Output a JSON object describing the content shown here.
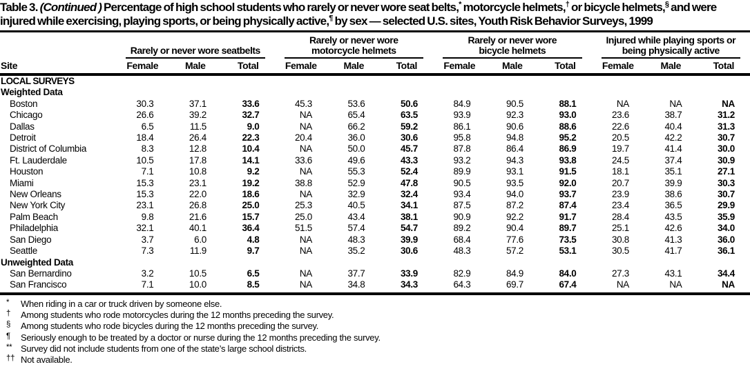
{
  "title": {
    "label": "Table 3.",
    "continued": "(Continued )",
    "part_students": "Percentage of high school students who rarely or never wore seat belts,",
    "marker_seatbelts": "*",
    "part_motorcycle": "motorcycle helmets,",
    "marker_motorcycle": "†",
    "part_bicycle": "or bicycle helmets,",
    "marker_bicycle": "§",
    "part_injured": "and were injured while exercising, playing sports, or being physically active,",
    "marker_injured": "¶",
    "part_end": "by sex — selected U.S. sites, Youth Risk Behavior Surveys, 1999"
  },
  "table": {
    "site_header": "Site",
    "groups": [
      {
        "label": "Rarely or never wore seatbelts"
      },
      {
        "label": "Rarely or never wore\nmotorcycle helmets"
      },
      {
        "label": "Rarely or never wore\nbicycle helmets"
      },
      {
        "label": "Injured while playing sports or\nbeing physically active"
      }
    ],
    "subheaders": [
      "Female",
      "Male",
      "Total"
    ],
    "rows": [
      {
        "section": "LOCAL SURVEYS",
        "caps": true
      },
      {
        "section": "Weighted Data"
      },
      {
        "site": "Boston",
        "values": [
          "30.3",
          "37.1",
          "33.6",
          "45.3",
          "53.6",
          "50.6",
          "84.9",
          "90.5",
          "88.1",
          "NA",
          "NA",
          "NA"
        ]
      },
      {
        "site": "Chicago",
        "values": [
          "26.6",
          "39.2",
          "32.7",
          "NA",
          "65.4",
          "63.5",
          "93.9",
          "92.3",
          "93.0",
          "23.6",
          "38.7",
          "31.2"
        ]
      },
      {
        "site": "Dallas",
        "values": [
          "6.5",
          "11.5",
          "9.0",
          "NA",
          "66.2",
          "59.2",
          "86.1",
          "90.6",
          "88.6",
          "22.6",
          "40.4",
          "31.3"
        ]
      },
      {
        "site": "Detroit",
        "values": [
          "18.4",
          "26.4",
          "22.3",
          "20.4",
          "36.0",
          "30.6",
          "95.8",
          "94.8",
          "95.2",
          "20.5",
          "42.2",
          "30.7"
        ]
      },
      {
        "site": "District of Columbia",
        "values": [
          "8.3",
          "12.8",
          "10.4",
          "NA",
          "50.0",
          "45.7",
          "87.8",
          "86.4",
          "86.9",
          "19.7",
          "41.4",
          "30.0"
        ]
      },
      {
        "site": "Ft. Lauderdale",
        "values": [
          "10.5",
          "17.8",
          "14.1",
          "33.6",
          "49.6",
          "43.3",
          "93.2",
          "94.3",
          "93.8",
          "24.5",
          "37.4",
          "30.9"
        ]
      },
      {
        "site": "Houston",
        "values": [
          "7.1",
          "10.8",
          "9.2",
          "NA",
          "55.3",
          "52.4",
          "89.9",
          "93.1",
          "91.5",
          "18.1",
          "35.1",
          "27.1"
        ]
      },
      {
        "site": "Miami",
        "values": [
          "15.3",
          "23.1",
          "19.2",
          "38.8",
          "52.9",
          "47.8",
          "90.5",
          "93.5",
          "92.0",
          "20.7",
          "39.9",
          "30.3"
        ]
      },
      {
        "site": "New Orleans",
        "values": [
          "15.3",
          "22.0",
          "18.6",
          "NA",
          "32.9",
          "32.4",
          "93.4",
          "94.0",
          "93.7",
          "23.9",
          "38.6",
          "30.7"
        ]
      },
      {
        "site": "New York City",
        "values": [
          "23.1",
          "26.8",
          "25.0",
          "25.3",
          "40.5",
          "34.1",
          "87.5",
          "87.2",
          "87.4",
          "23.4",
          "36.5",
          "29.9"
        ]
      },
      {
        "site": "Palm Beach",
        "values": [
          "9.8",
          "21.6",
          "15.7",
          "25.0",
          "43.4",
          "38.1",
          "90.9",
          "92.2",
          "91.7",
          "28.4",
          "43.5",
          "35.9"
        ]
      },
      {
        "site": "Philadelphia",
        "values": [
          "32.1",
          "40.1",
          "36.4",
          "51.5",
          "57.4",
          "54.7",
          "89.2",
          "90.4",
          "89.7",
          "25.1",
          "42.6",
          "34.0"
        ]
      },
      {
        "site": "San Diego",
        "values": [
          "3.7",
          "6.0",
          "4.8",
          "NA",
          "48.3",
          "39.9",
          "68.4",
          "77.6",
          "73.5",
          "30.8",
          "41.3",
          "36.0"
        ]
      },
      {
        "site": "Seattle",
        "values": [
          "7.3",
          "11.9",
          "9.7",
          "NA",
          "35.2",
          "30.6",
          "48.3",
          "57.2",
          "53.1",
          "30.5",
          "41.7",
          "36.1"
        ]
      },
      {
        "section": "Unweighted Data"
      },
      {
        "site": "San Bernardino",
        "values": [
          "3.2",
          "10.5",
          "6.5",
          "NA",
          "37.7",
          "33.9",
          "82.9",
          "84.9",
          "84.0",
          "27.3",
          "43.1",
          "34.4"
        ]
      },
      {
        "site": "San Francisco",
        "values": [
          "7.1",
          "10.0",
          "8.5",
          "NA",
          "34.8",
          "34.3",
          "64.3",
          "69.7",
          "67.4",
          "NA",
          "NA",
          "NA"
        ]
      }
    ]
  },
  "footnotes": [
    {
      "marker": "*",
      "text": "When riding in a car or truck driven by someone else."
    },
    {
      "marker": "†",
      "text": "Among students who rode motorcycles during the 12 months preceding the survey."
    },
    {
      "marker": "§",
      "text": "Among students who rode bicycles during the 12 months preceding the survey."
    },
    {
      "marker": "¶",
      "text": "Seriously enough to be treated by a doctor or nurse during the 12 months preceding the survey."
    },
    {
      "marker": "**",
      "text": "Survey did not include students from one of the state’s large school districts."
    },
    {
      "marker": "††",
      "text": "Not available."
    }
  ]
}
